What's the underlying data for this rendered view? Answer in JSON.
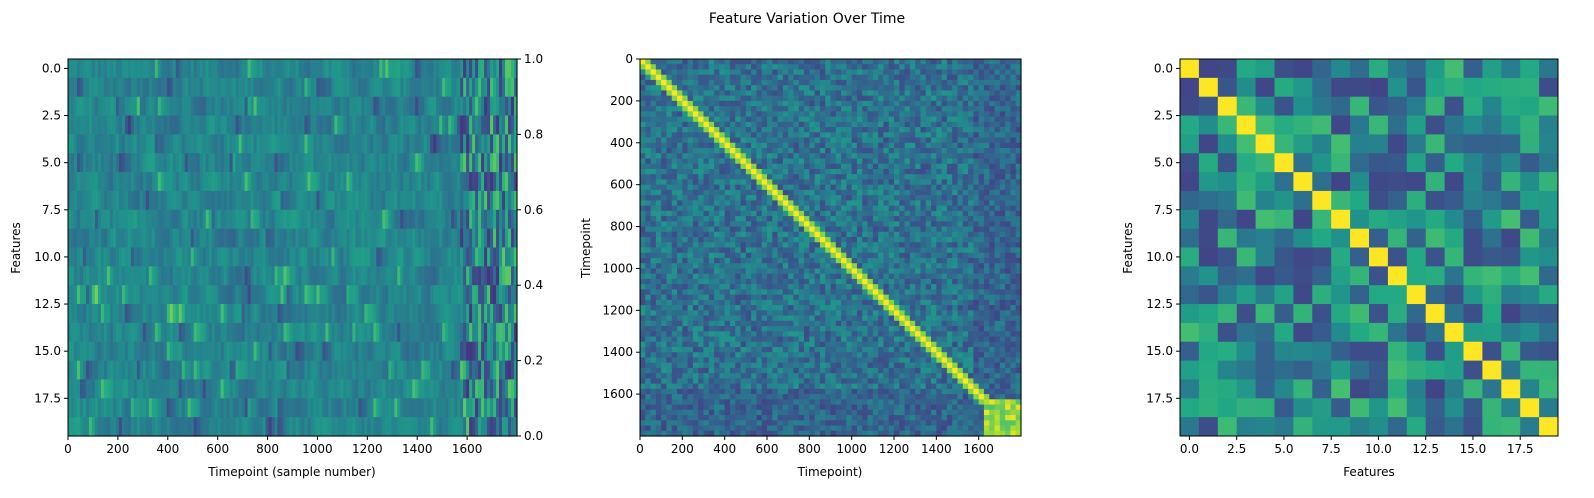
{
  "suptitle": "Feature Variation Over Time",
  "chart_data": [
    {
      "type": "heatmap",
      "title": "",
      "xlabel": "Timepoint (sample number)",
      "ylabel": "Features",
      "n_rows": 20,
      "n_cols": 1800,
      "xlim": [
        0,
        1800
      ],
      "ylim": [
        19.5,
        -0.5
      ],
      "xticks": [
        0,
        200,
        400,
        600,
        800,
        1000,
        1200,
        1400,
        1600
      ],
      "yticks": [
        0.0,
        2.5,
        5.0,
        7.5,
        10.0,
        12.5,
        15.0,
        17.5
      ],
      "secondary_yticks": [
        0.0,
        0.2,
        0.4,
        0.6,
        0.8,
        1.0
      ],
      "colormap": "viridis"
    },
    {
      "type": "heatmap",
      "title": "",
      "xlabel": "Timepoint)",
      "ylabel": "Timepoint",
      "n_rows": 1800,
      "n_cols": 1800,
      "xticks": [
        0,
        200,
        400,
        600,
        800,
        1000,
        1200,
        1400,
        1600
      ],
      "yticks": [
        0,
        200,
        400,
        600,
        800,
        1000,
        1200,
        1400,
        1600
      ],
      "colormap": "viridis"
    },
    {
      "type": "heatmap",
      "title": "",
      "xlabel": "Features",
      "ylabel": "Features",
      "n_rows": 20,
      "n_cols": 20,
      "xticks": [
        0.0,
        2.5,
        5.0,
        7.5,
        10.0,
        12.5,
        15.0,
        17.5
      ],
      "yticks": [
        0.0,
        2.5,
        5.0,
        7.5,
        10.0,
        12.5,
        15.0,
        17.5
      ],
      "colormap": "viridis"
    }
  ]
}
